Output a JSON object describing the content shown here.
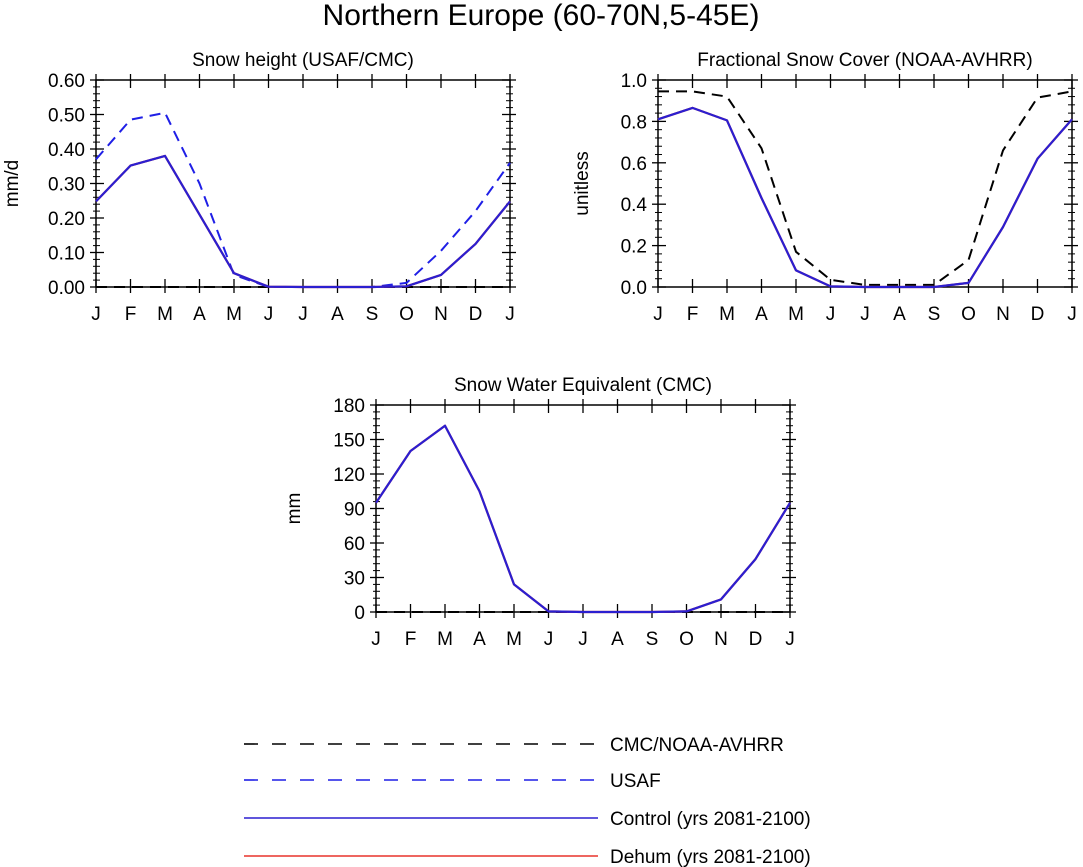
{
  "figure": {
    "title": "Northern Europe (60-70N,5-45E)"
  },
  "chart_data": [
    {
      "type": "line",
      "title": "Snow height (USAF/CMC)",
      "xlabel": "",
      "ylabel": "mm/d",
      "categories": [
        "J",
        "F",
        "M",
        "A",
        "M",
        "J",
        "J",
        "A",
        "S",
        "O",
        "N",
        "D",
        "J"
      ],
      "ylim": [
        0,
        0.6
      ],
      "yticks": [
        0.0,
        0.1,
        0.2,
        0.3,
        0.4,
        0.5,
        0.6
      ],
      "ytick_labels": [
        "0.00",
        "0.10",
        "0.20",
        "0.30",
        "0.40",
        "0.50",
        "0.60"
      ],
      "series": [
        {
          "name": "CMC/NOAA-AVHRR",
          "color": "#000000",
          "style": "dashed",
          "values": [
            0,
            0,
            0,
            0,
            0,
            0,
            0,
            0,
            0,
            0,
            0,
            0,
            0
          ]
        },
        {
          "name": "USAF",
          "color": "#1f1fe6",
          "style": "dashed",
          "values": [
            0.37,
            0.485,
            0.505,
            0.3,
            0.035,
            0,
            0,
            0,
            0,
            0.012,
            0.105,
            0.22,
            0.36
          ]
        },
        {
          "name": "Dehum (yrs 2081-2100)",
          "color": "#e8332b",
          "style": "solid",
          "values": [
            0.248,
            0.352,
            0.38,
            0.21,
            0.04,
            0.001,
            0,
            0,
            0,
            0.002,
            0.035,
            0.125,
            0.248
          ]
        },
        {
          "name": "Control (yrs 2081-2100)",
          "color": "#2b1fd0",
          "style": "solid",
          "values": [
            0.248,
            0.352,
            0.38,
            0.21,
            0.04,
            0.001,
            0,
            0,
            0,
            0.002,
            0.035,
            0.125,
            0.248
          ]
        }
      ]
    },
    {
      "type": "line",
      "title": "Fractional Snow Cover (NOAA-AVHRR)",
      "xlabel": "",
      "ylabel": "unitless",
      "categories": [
        "J",
        "F",
        "M",
        "A",
        "M",
        "J",
        "J",
        "A",
        "S",
        "O",
        "N",
        "D",
        "J"
      ],
      "ylim": [
        0,
        1.0
      ],
      "yticks": [
        0.0,
        0.2,
        0.4,
        0.6,
        0.8,
        1.0
      ],
      "ytick_labels": [
        "0.0",
        "0.2",
        "0.4",
        "0.6",
        "0.8",
        "1.0"
      ],
      "series": [
        {
          "name": "CMC/NOAA-AVHRR",
          "color": "#000000",
          "style": "dashed",
          "values": [
            0.945,
            0.945,
            0.92,
            0.67,
            0.17,
            0.035,
            0.01,
            0.01,
            0.01,
            0.13,
            0.66,
            0.915,
            0.945
          ]
        },
        {
          "name": "Dehum (yrs 2081-2100)",
          "color": "#e8332b",
          "style": "solid",
          "values": [
            0.81,
            0.865,
            0.805,
            0.43,
            0.08,
            0.003,
            0,
            0,
            0,
            0.02,
            0.29,
            0.62,
            0.81
          ]
        },
        {
          "name": "Control (yrs 2081-2100)",
          "color": "#2b1fd0",
          "style": "solid",
          "values": [
            0.81,
            0.865,
            0.805,
            0.43,
            0.08,
            0.003,
            0,
            0,
            0,
            0.02,
            0.29,
            0.62,
            0.81
          ]
        }
      ]
    },
    {
      "type": "line",
      "title": "Snow Water Equivalent (CMC)",
      "xlabel": "",
      "ylabel": "mm",
      "categories": [
        "J",
        "F",
        "M",
        "A",
        "M",
        "J",
        "J",
        "A",
        "S",
        "O",
        "N",
        "D",
        "J"
      ],
      "ylim": [
        0,
        180
      ],
      "yticks": [
        0,
        30,
        60,
        90,
        120,
        150,
        180
      ],
      "ytick_labels": [
        "0",
        "30",
        "60",
        "90",
        "120",
        "150",
        "180"
      ],
      "series": [
        {
          "name": "CMC/NOAA-AVHRR",
          "color": "#000000",
          "style": "dashed",
          "values": [
            0,
            0,
            0,
            0,
            0,
            0,
            0,
            0,
            0,
            0,
            0,
            0,
            0
          ]
        },
        {
          "name": "Dehum (yrs 2081-2100)",
          "color": "#e8332b",
          "style": "solid",
          "values": [
            95,
            140,
            162,
            105,
            24,
            0.5,
            0,
            0,
            0,
            0.5,
            11,
            46,
            95
          ]
        },
        {
          "name": "Control (yrs 2081-2100)",
          "color": "#2b1fd0",
          "style": "solid",
          "values": [
            95,
            140,
            162,
            105,
            24,
            0.5,
            0,
            0,
            0,
            0.5,
            11,
            46,
            95
          ]
        }
      ]
    }
  ],
  "legend": {
    "entries": [
      {
        "label": "CMC/NOAA-AVHRR",
        "color": "#000000",
        "style": "dashed"
      },
      {
        "label": "USAF",
        "color": "#1f1fe6",
        "style": "dashed"
      },
      {
        "label": "Control (yrs 2081-2100)",
        "color": "#2b1fd0",
        "style": "solid"
      },
      {
        "label": "Dehum (yrs 2081-2100)",
        "color": "#e8332b",
        "style": "solid"
      }
    ]
  }
}
